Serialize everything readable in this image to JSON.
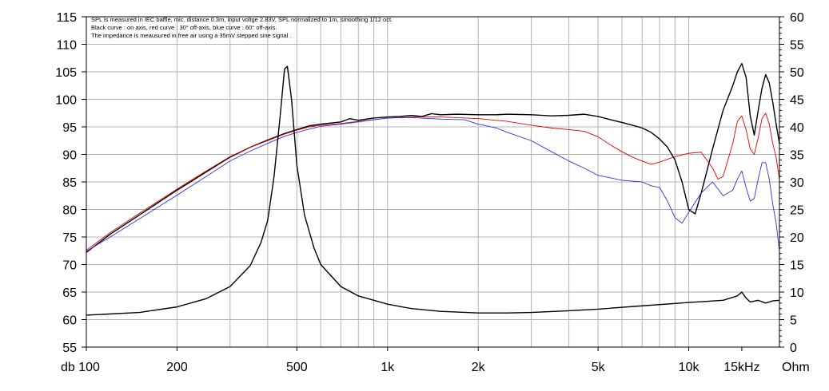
{
  "chart_data": {
    "type": "line",
    "title": "",
    "notes": [
      "SPL is measured in IEC baffle, mic. distance 0.3m, input voltge 2.83V, SPL normalized to 1m, smoothing 1/12 oct.",
      "Black curve : on axis, red curve : 30° off-axis, blue curve : 60° off-axis.",
      "The impedance is meausured in free air using a 35mV stepped sine signal ."
    ],
    "x_axis": {
      "scale": "log",
      "range": [
        100,
        20000
      ],
      "ticks": [
        {
          "value": 100,
          "label": "db 100"
        },
        {
          "value": 200,
          "label": "200"
        },
        {
          "value": 500,
          "label": "500"
        },
        {
          "value": 1000,
          "label": "1k"
        },
        {
          "value": 2000,
          "label": "2k"
        },
        {
          "value": 5000,
          "label": "5k"
        },
        {
          "value": 10000,
          "label": "10k"
        },
        {
          "value": 15000,
          "label": "15kHz"
        }
      ],
      "unit_right": "Ohm"
    },
    "y_left": {
      "label": "db",
      "range": [
        55,
        115
      ],
      "ticks": [
        "55",
        "60",
        "65",
        "70",
        "75",
        "80",
        "85",
        "90",
        "95",
        "100",
        "105",
        "110",
        "115"
      ]
    },
    "y_right": {
      "label": "Ohm",
      "range": [
        0,
        60
      ],
      "ticks": [
        "0",
        "5",
        "10",
        "15",
        "20",
        "25",
        "30",
        "35",
        "40",
        "45",
        "50",
        "55",
        "60"
      ]
    },
    "grid": true,
    "series": [
      {
        "key": "spl_on_axis",
        "color": "#000000",
        "axis": "left",
        "points": [
          [
            100,
            72.2
          ],
          [
            120,
            75.5
          ],
          [
            150,
            79.0
          ],
          [
            200,
            83.5
          ],
          [
            250,
            86.8
          ],
          [
            300,
            89.5
          ],
          [
            350,
            91.3
          ],
          [
            400,
            92.6
          ],
          [
            450,
            93.7
          ],
          [
            500,
            94.5
          ],
          [
            550,
            95.2
          ],
          [
            600,
            95.5
          ],
          [
            700,
            95.9
          ],
          [
            750,
            96.5
          ],
          [
            800,
            96.2
          ],
          [
            900,
            96.6
          ],
          [
            1000,
            96.8
          ],
          [
            1100,
            96.9
          ],
          [
            1200,
            97.1
          ],
          [
            1300,
            96.9
          ],
          [
            1400,
            97.4
          ],
          [
            1500,
            97.2
          ],
          [
            1700,
            97.3
          ],
          [
            2000,
            97.2
          ],
          [
            2300,
            97.2
          ],
          [
            2500,
            97.3
          ],
          [
            3000,
            97.2
          ],
          [
            3500,
            97.0
          ],
          [
            4000,
            97.1
          ],
          [
            4500,
            97.3
          ],
          [
            5000,
            96.9
          ],
          [
            5500,
            96.3
          ],
          [
            6000,
            95.8
          ],
          [
            6500,
            95.3
          ],
          [
            7000,
            94.8
          ],
          [
            7500,
            94.0
          ],
          [
            8000,
            92.8
          ],
          [
            8500,
            91.3
          ],
          [
            9000,
            89.0
          ],
          [
            9500,
            85.0
          ],
          [
            10000,
            80.0
          ],
          [
            10500,
            79.2
          ],
          [
            11000,
            83.0
          ],
          [
            12000,
            91.0
          ],
          [
            13000,
            98.0
          ],
          [
            14000,
            102.5
          ],
          [
            14500,
            105.0
          ],
          [
            15000,
            106.5
          ],
          [
            15500,
            104.0
          ],
          [
            16000,
            97.0
          ],
          [
            16500,
            93.5
          ],
          [
            17000,
            98.0
          ],
          [
            17500,
            102.0
          ],
          [
            18000,
            104.5
          ],
          [
            18500,
            103.0
          ],
          [
            19000,
            99.5
          ],
          [
            19500,
            95.5
          ],
          [
            20000,
            92.0
          ]
        ]
      },
      {
        "key": "spl_30deg",
        "color": "#e00000",
        "axis": "left",
        "points": [
          [
            100,
            72.6
          ],
          [
            120,
            75.8
          ],
          [
            150,
            79.3
          ],
          [
            200,
            83.7
          ],
          [
            250,
            87.0
          ],
          [
            300,
            89.6
          ],
          [
            350,
            91.3
          ],
          [
            400,
            92.5
          ],
          [
            450,
            93.6
          ],
          [
            500,
            94.4
          ],
          [
            550,
            95.0
          ],
          [
            600,
            95.3
          ],
          [
            700,
            95.6
          ],
          [
            800,
            96.0
          ],
          [
            900,
            96.3
          ],
          [
            1000,
            96.6
          ],
          [
            1200,
            96.8
          ],
          [
            1500,
            96.8
          ],
          [
            2000,
            96.5
          ],
          [
            2500,
            96.0
          ],
          [
            3000,
            95.3
          ],
          [
            3500,
            94.8
          ],
          [
            4000,
            94.5
          ],
          [
            4500,
            94.2
          ],
          [
            5000,
            93.2
          ],
          [
            5500,
            91.7
          ],
          [
            6000,
            90.5
          ],
          [
            6500,
            89.5
          ],
          [
            7000,
            88.8
          ],
          [
            7500,
            88.2
          ],
          [
            8000,
            88.6
          ],
          [
            9000,
            89.6
          ],
          [
            10000,
            90.2
          ],
          [
            11000,
            90.4
          ],
          [
            12000,
            87.5
          ],
          [
            12500,
            85.5
          ],
          [
            13000,
            86.0
          ],
          [
            14000,
            92.0
          ],
          [
            14500,
            96.0
          ],
          [
            15000,
            97.0
          ],
          [
            15500,
            94.5
          ],
          [
            16000,
            91.0
          ],
          [
            16500,
            90.0
          ],
          [
            17000,
            93.0
          ],
          [
            17500,
            96.5
          ],
          [
            18000,
            97.5
          ],
          [
            18500,
            95.5
          ],
          [
            19000,
            92.0
          ],
          [
            19500,
            89.5
          ],
          [
            20000,
            85.5
          ]
        ]
      },
      {
        "key": "spl_60deg",
        "color": "#3030e0",
        "axis": "left",
        "points": [
          [
            100,
            72.4
          ],
          [
            120,
            75.0
          ],
          [
            150,
            78.3
          ],
          [
            200,
            82.6
          ],
          [
            250,
            86.0
          ],
          [
            300,
            88.8
          ],
          [
            350,
            90.6
          ],
          [
            400,
            92.0
          ],
          [
            450,
            93.2
          ],
          [
            500,
            94.0
          ],
          [
            550,
            94.6
          ],
          [
            600,
            95.1
          ],
          [
            700,
            95.5
          ],
          [
            800,
            95.9
          ],
          [
            900,
            96.3
          ],
          [
            1000,
            96.6
          ],
          [
            1200,
            96.7
          ],
          [
            1500,
            96.4
          ],
          [
            1800,
            96.3
          ],
          [
            2000,
            95.5
          ],
          [
            2300,
            94.8
          ],
          [
            2500,
            94.0
          ],
          [
            3000,
            92.5
          ],
          [
            3500,
            90.5
          ],
          [
            4000,
            88.8
          ],
          [
            4500,
            87.5
          ],
          [
            5000,
            86.2
          ],
          [
            6000,
            85.3
          ],
          [
            7000,
            85.0
          ],
          [
            7500,
            84.3
          ],
          [
            8000,
            84.0
          ],
          [
            8500,
            81.5
          ],
          [
            9000,
            78.5
          ],
          [
            9500,
            77.5
          ],
          [
            10000,
            79.5
          ],
          [
            11000,
            83.0
          ],
          [
            12000,
            85.0
          ],
          [
            13000,
            82.5
          ],
          [
            14000,
            83.5
          ],
          [
            14500,
            85.5
          ],
          [
            15000,
            87.0
          ],
          [
            15500,
            84.0
          ],
          [
            16000,
            81.5
          ],
          [
            16500,
            82.0
          ],
          [
            17000,
            85.5
          ],
          [
            17500,
            88.5
          ],
          [
            18000,
            88.5
          ],
          [
            18500,
            85.5
          ],
          [
            19000,
            81.0
          ],
          [
            19500,
            77.5
          ],
          [
            20000,
            72.5
          ]
        ]
      },
      {
        "key": "impedance",
        "color": "#000000",
        "axis": "right",
        "points": [
          [
            100,
            5.8
          ],
          [
            150,
            6.3
          ],
          [
            200,
            7.3
          ],
          [
            250,
            8.8
          ],
          [
            300,
            11.0
          ],
          [
            350,
            14.8
          ],
          [
            380,
            19.0
          ],
          [
            400,
            23.0
          ],
          [
            420,
            31.0
          ],
          [
            440,
            42.0
          ],
          [
            455,
            50.5
          ],
          [
            465,
            51.0
          ],
          [
            480,
            45.0
          ],
          [
            500,
            33.0
          ],
          [
            530,
            24.0
          ],
          [
            570,
            18.0
          ],
          [
            600,
            15.0
          ],
          [
            700,
            11.0
          ],
          [
            800,
            9.3
          ],
          [
            1000,
            7.8
          ],
          [
            1200,
            7.0
          ],
          [
            1500,
            6.5
          ],
          [
            2000,
            6.2
          ],
          [
            2500,
            6.2
          ],
          [
            3000,
            6.3
          ],
          [
            4000,
            6.6
          ],
          [
            5000,
            6.9
          ],
          [
            7000,
            7.5
          ],
          [
            10000,
            8.1
          ],
          [
            13000,
            8.5
          ],
          [
            14500,
            9.3
          ],
          [
            15000,
            10.0
          ],
          [
            15500,
            8.9
          ],
          [
            16000,
            8.2
          ],
          [
            17000,
            8.5
          ],
          [
            18000,
            8.0
          ],
          [
            19000,
            8.4
          ],
          [
            20000,
            8.5
          ]
        ]
      }
    ]
  }
}
